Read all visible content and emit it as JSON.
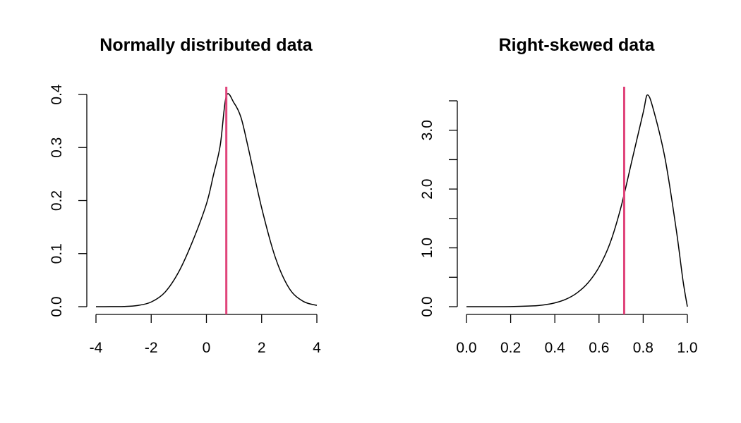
{
  "chart_data": [
    {
      "type": "line",
      "title": "Normally distributed data",
      "xlabel": "",
      "ylabel": "",
      "xlim": [
        -4,
        4
      ],
      "ylim": [
        0,
        0.4
      ],
      "x_ticks": [
        -4,
        -2,
        0,
        2,
        4
      ],
      "x_tick_labels": [
        "-4",
        "-2",
        "0",
        "2",
        "4"
      ],
      "y_ticks": [
        0.0,
        0.1,
        0.2,
        0.3,
        0.4
      ],
      "y_tick_labels": [
        "0.0",
        "0.1",
        "0.2",
        "0.3",
        "0.4"
      ],
      "y_minor_ticks": [],
      "grid": false,
      "legend": "none",
      "curve_color": "#000000",
      "vline_color": "#e0457b",
      "vline_x": 0.72,
      "series": [
        {
          "x": [
            -4.0,
            -3.5,
            -3.0,
            -2.5,
            -2.0,
            -1.5,
            -1.0,
            -0.5,
            0.0,
            0.25,
            0.5,
            0.72,
            1.0,
            1.25,
            1.5,
            2.0,
            2.5,
            3.0,
            3.5,
            4.0
          ],
          "y": [
            0.0,
            0.0001,
            0.0004,
            0.0022,
            0.0088,
            0.0273,
            0.0659,
            0.1233,
            0.1936,
            0.2471,
            0.304,
            0.397,
            0.384,
            0.357,
            0.303,
            0.1863,
            0.0921,
            0.0344,
            0.0102,
            0.0024
          ]
        }
      ]
    },
    {
      "type": "line",
      "title": "Right-skewed data",
      "xlabel": "",
      "ylabel": "",
      "xlim": [
        0,
        1
      ],
      "ylim": [
        0,
        3.5
      ],
      "x_ticks": [
        0.0,
        0.2,
        0.4,
        0.6,
        0.8,
        1.0
      ],
      "x_tick_labels": [
        "0.0",
        "0.2",
        "0.4",
        "0.6",
        "0.8",
        "1.0"
      ],
      "y_ticks": [
        0.0,
        1.0,
        2.0,
        3.0
      ],
      "y_tick_labels": [
        "0.0",
        "1.0",
        "2.0",
        "3.0"
      ],
      "y_minor_ticks": [
        0.5,
        1.5,
        2.5,
        3.5
      ],
      "grid": false,
      "legend": "none",
      "curve_color": "#000000",
      "vline_color": "#e0457b",
      "vline_x": 0.714,
      "series": [
        {
          "x": [
            0.0,
            0.1,
            0.2,
            0.3,
            0.35,
            0.4,
            0.45,
            0.5,
            0.55,
            0.6,
            0.65,
            0.7,
            0.75,
            0.8,
            0.82,
            0.85,
            0.9,
            0.95,
            0.98,
            1.0
          ],
          "y": [
            0.0,
            0.0001,
            0.0016,
            0.0128,
            0.03,
            0.064,
            0.126,
            0.233,
            0.404,
            0.672,
            1.08,
            1.7,
            2.5,
            3.3,
            3.6,
            3.3,
            2.5,
            1.3,
            0.45,
            0.0
          ]
        }
      ]
    }
  ]
}
